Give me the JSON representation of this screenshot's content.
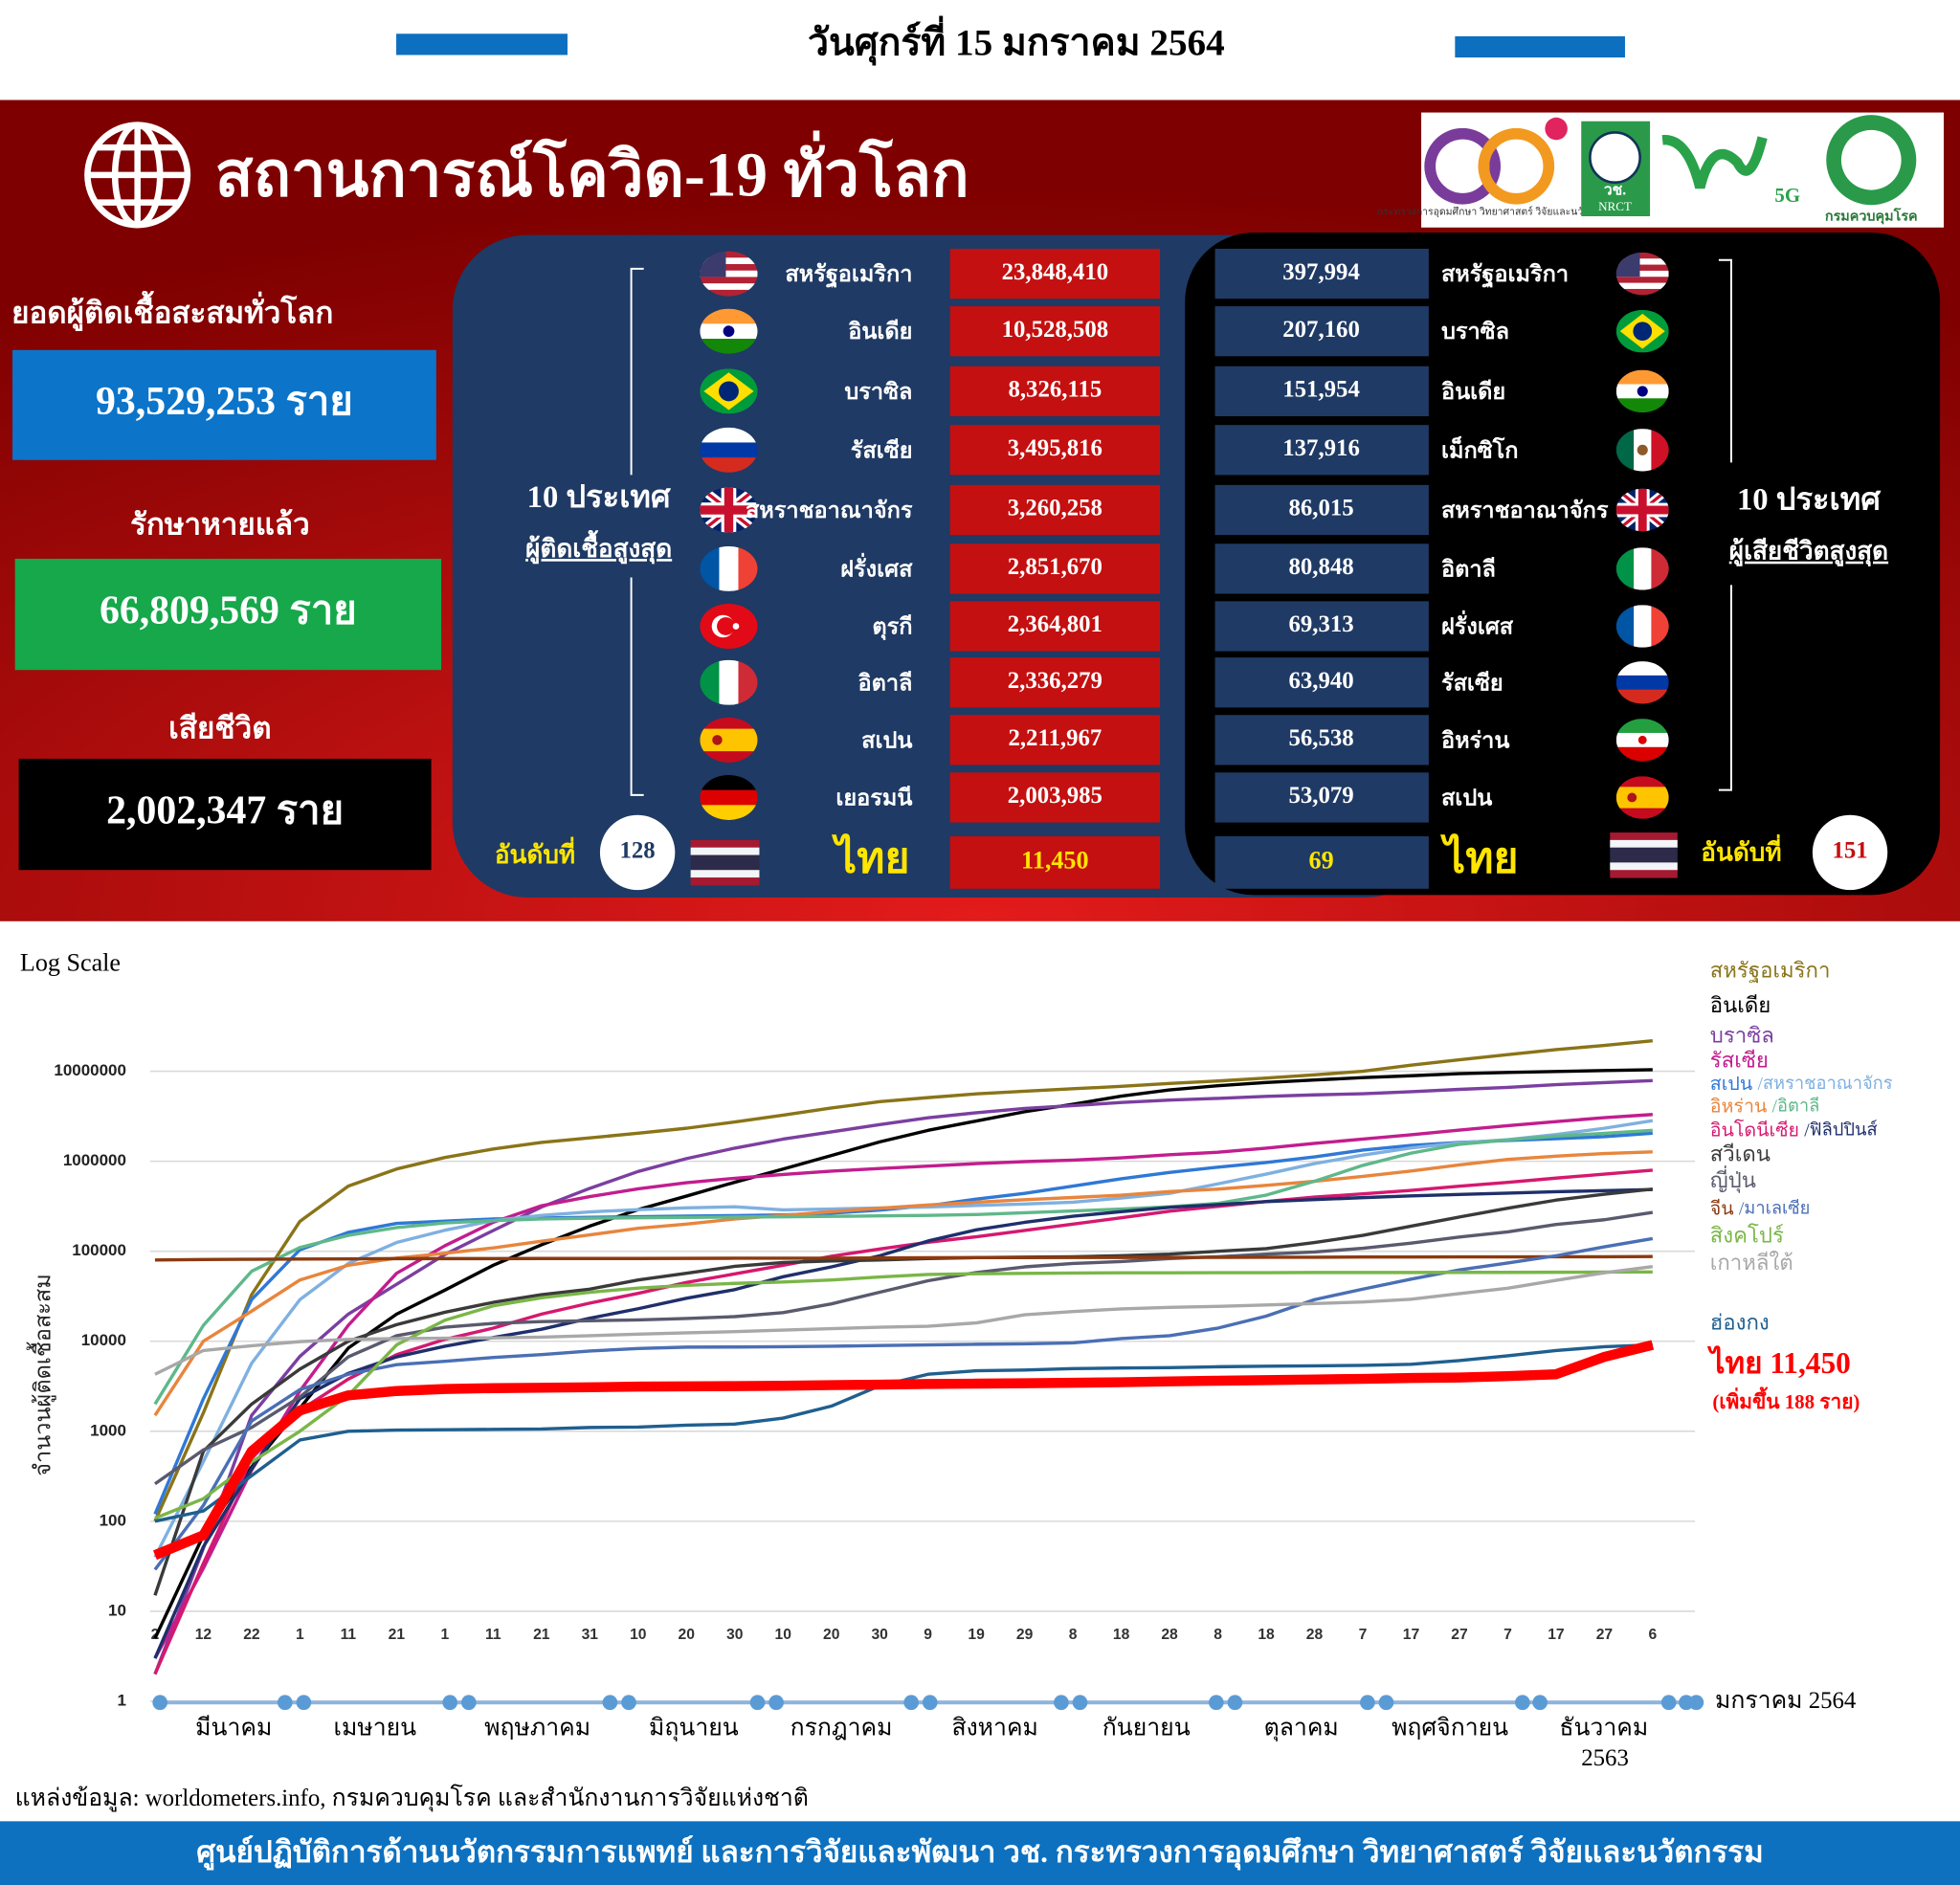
{
  "header": {
    "date": "วันศุกร์ที่ 15 มกราคม 2564",
    "title": "สถานการณ์โควิด-19 ทั่วโลก"
  },
  "logos": {
    "ministry": "กระทรวงการอุดมศึกษา วิทยาศาสตร์ วิจัยและนวัตกรรม",
    "nrct_th": "วช.",
    "nrct_en": "NRCT",
    "fiveg": "5G",
    "ddc": "กรมควบคุมโรค"
  },
  "summary": [
    {
      "label": "ยอดผู้ติดเชื้อสะสมทั่วโลก",
      "value": "93,529,253 ราย"
    },
    {
      "label": "รักษาหายแล้ว",
      "value": "66,809,569 ราย"
    },
    {
      "label": "เสียชีวิต",
      "value": "2,002,347 ราย"
    }
  ],
  "cases_table": {
    "label": "10 ประเทศ",
    "sublabel": "ผู้ติดเชื้อสูงสุด",
    "rows": [
      {
        "name": "สหรัฐอเมริกา",
        "value": "23,848,410"
      },
      {
        "name": "อินเดีย",
        "value": "10,528,508"
      },
      {
        "name": "บราซิล",
        "value": "8,326,115"
      },
      {
        "name": "รัสเซีย",
        "value": "3,495,816"
      },
      {
        "name": "สหราชอาณาจักร",
        "value": "3,260,258"
      },
      {
        "name": "ฝรั่งเศส",
        "value": "2,851,670"
      },
      {
        "name": "ตุรกี",
        "value": "2,364,801"
      },
      {
        "name": "อิตาลี",
        "value": "2,336,279"
      },
      {
        "name": "สเปน",
        "value": "2,211,967"
      },
      {
        "name": "เยอรมนี",
        "value": "2,003,985"
      }
    ],
    "thailand": {
      "rank_label": "อันดับที่",
      "rank": "128",
      "name": "ไทย",
      "value": "11,450"
    }
  },
  "deaths_table": {
    "label": "10 ประเทศ",
    "sublabel": "ผู้เสียชีวิตสูงสุด",
    "rows": [
      {
        "name": "สหรัฐอเมริกา",
        "value": "397,994"
      },
      {
        "name": "บราซิล",
        "value": "207,160"
      },
      {
        "name": "อินเดีย",
        "value": "151,954"
      },
      {
        "name": "เม็กซิโก",
        "value": "137,916"
      },
      {
        "name": "สหราชอาณาจักร",
        "value": "86,015"
      },
      {
        "name": "อิตาลี",
        "value": "80,848"
      },
      {
        "name": "ฝรั่งเศส",
        "value": "69,313"
      },
      {
        "name": "รัสเซีย",
        "value": "63,940"
      },
      {
        "name": "อิหร่าน",
        "value": "56,538"
      },
      {
        "name": "สเปน",
        "value": "53,079"
      }
    ],
    "thailand": {
      "rank_label": "อันดับที่",
      "rank": "151",
      "name": "ไทย",
      "value": "69"
    }
  },
  "chart_data": {
    "type": "line",
    "subtitle": "Log Scale",
    "y_label": "จำนวนผู้ติดเชื้อสะสม",
    "log_scale": true,
    "grid": true,
    "categories": [
      "2",
      "12",
      "22",
      "1",
      "11",
      "21",
      "1",
      "11",
      "21",
      "31",
      "10",
      "20",
      "30",
      "10",
      "20",
      "30",
      "9",
      "19",
      "29",
      "8",
      "18",
      "28",
      "8",
      "18",
      "28",
      "7",
      "17",
      "27",
      "7",
      "17",
      "27",
      "6"
    ],
    "month_labels": [
      "มีนาคม",
      "เมษายน",
      "พฤษภาคม",
      "มิถุนายน",
      "กรกฎาคม",
      "สิงหาคม",
      "กันยายน",
      "ตุลาคม",
      "พฤศจิกายน",
      "ธันวาคม",
      "มกราคม  2564"
    ],
    "year_label": "2563",
    "ylim": [
      1,
      80000000
    ],
    "yticks": [
      1,
      10,
      100,
      1000,
      10000,
      100000,
      1000000,
      10000000
    ],
    "legend_separator": "/",
    "series": [
      {
        "name": "สหรัฐอเมริกา",
        "color": "#8a7418",
        "values": [
          100,
          1600,
          33000,
          215000,
          530000,
          820000,
          1100000,
          1370000,
          1620000,
          1820000,
          2050000,
          2330000,
          2730000,
          3250000,
          3900000,
          4600000,
          5100000,
          5600000,
          6000000,
          6400000,
          6800000,
          7300000,
          7800000,
          8400000,
          9100000,
          10000000,
          11700000,
          13400000,
          15300000,
          17400000,
          19400000,
          21800000
        ]
      },
      {
        "name": "อินเดีย",
        "color": "#000000",
        "values": [
          5,
          70,
          400,
          1800,
          8400,
          20000,
          37000,
          70000,
          118000,
          190000,
          290000,
          410000,
          585000,
          820000,
          1160000,
          1640000,
          2200000,
          2800000,
          3550000,
          4300000,
          5300000,
          6200000,
          6900000,
          7500000,
          8000000,
          8500000,
          8900000,
          9400000,
          9700000,
          9950000,
          10200000,
          10400000
        ]
      },
      {
        "name": "บราซิล",
        "color": "#7b3fa0",
        "values": [
          2,
          50,
          1500,
          6800,
          20000,
          43000,
          92000,
          170000,
          310000,
          500000,
          770000,
          1070000,
          1400000,
          1760000,
          2120000,
          2550000,
          3040000,
          3460000,
          3850000,
          4150000,
          4500000,
          4780000,
          5000000,
          5250000,
          5470000,
          5630000,
          5910000,
          6290000,
          6630000,
          7110000,
          7470000,
          7870000
        ]
      },
      {
        "name": "รัสเซีย",
        "color": "#c21d8e",
        "values": [
          3,
          30,
          370,
          2800,
          15000,
          57000,
          115000,
          210000,
          320000,
          405000,
          494000,
          577000,
          647000,
          713000,
          777000,
          830000,
          883000,
          940000,
          990000,
          1030000,
          1090000,
          1180000,
          1260000,
          1400000,
          1580000,
          1760000,
          1970000,
          2220000,
          2490000,
          2760000,
          3050000,
          3310000
        ]
      },
      {
        "name": "สเปน",
        "color": "#2f78d6",
        "values": [
          120,
          2300,
          29000,
          104000,
          162000,
          204000,
          216000,
          228000,
          234000,
          239000,
          242000,
          246000,
          249000,
          254000,
          265000,
          286000,
          320000,
          380000,
          440000,
          530000,
          640000,
          750000,
          860000,
          970000,
          1120000,
          1330000,
          1500000,
          1620000,
          1700000,
          1780000,
          1880000,
          2050000
        ]
      },
      {
        "name": "สหราชอาณาจักร",
        "color": "#7fb0e0",
        "values": [
          40,
          460,
          5700,
          29000,
          73000,
          125000,
          171000,
          219000,
          250000,
          274000,
          290000,
          303000,
          312000,
          288000,
          295000,
          302000,
          310000,
          322000,
          335000,
          350000,
          390000,
          440000,
          560000,
          720000,
          940000,
          1170000,
          1410000,
          1600000,
          1740000,
          1980000,
          2330000,
          2830000
        ]
      },
      {
        "name": "อิหร่าน",
        "color": "#e8853d",
        "values": [
          1500,
          10000,
          21600,
          48000,
          70000,
          84000,
          95000,
          109000,
          129000,
          152000,
          180000,
          200000,
          228000,
          250000,
          276000,
          300000,
          326000,
          350000,
          373000,
          395000,
          420000,
          460000,
          490000,
          540000,
          600000,
          680000,
          780000,
          910000,
          1050000,
          1140000,
          1220000,
          1270000
        ]
      },
      {
        "name": "อิตาลี",
        "color": "#5fb88a",
        "values": [
          2000,
          15000,
          60000,
          110000,
          150000,
          183000,
          207000,
          219000,
          228000,
          233000,
          236000,
          238000,
          240000,
          242000,
          244000,
          247000,
          250000,
          256000,
          268000,
          280000,
          295000,
          312000,
          340000,
          420000,
          600000,
          900000,
          1230000,
          1540000,
          1730000,
          1900000,
          2040000,
          2200000
        ]
      },
      {
        "name": "อินโดนีเซีย",
        "color": "#d6186f",
        "values": [
          2,
          34,
          500,
          1700,
          3800,
          7100,
          10500,
          14000,
          20000,
          26500,
          34000,
          45000,
          56000,
          70000,
          88000,
          106000,
          126000,
          145000,
          170000,
          200000,
          236000,
          278000,
          315000,
          357000,
          400000,
          434000,
          474000,
          528000,
          582000,
          650000,
          720000,
          798000
        ]
      },
      {
        "name": "ฟิลิปปินส์",
        "color": "#1f2f6b",
        "values": [
          3,
          52,
          380,
          2300,
          4400,
          6700,
          8800,
          11000,
          13600,
          18000,
          23000,
          30000,
          37500,
          52000,
          67000,
          89000,
          130000,
          173000,
          209000,
          245000,
          276000,
          307000,
          330000,
          356000,
          375000,
          394000,
          412000,
          427000,
          443000,
          458000,
          471000,
          485000
        ]
      },
      {
        "name": "สวีเดน",
        "color": "#3a3a3a",
        "values": [
          15,
          600,
          2000,
          4900,
          10000,
          15300,
          21000,
          27000,
          33000,
          38000,
          48000,
          57000,
          68000,
          75000,
          78000,
          80000,
          83000,
          85000,
          86000,
          87000,
          89000,
          93000,
          100000,
          107000,
          125000,
          150000,
          190000,
          240000,
          300000,
          370000,
          430000,
          490000
        ]
      },
      {
        "name": "ญี่ปุ่น",
        "color": "#5a5a6e",
        "values": [
          260,
          620,
          1100,
          2400,
          6700,
          11500,
          14300,
          15800,
          16500,
          16900,
          17300,
          17900,
          18800,
          20800,
          26000,
          35000,
          47000,
          58000,
          67000,
          73000,
          77000,
          83000,
          87000,
          93000,
          98000,
          108000,
          123000,
          144000,
          164000,
          198000,
          224000,
          270000
        ]
      },
      {
        "name": "จีน",
        "color": "#8b3a0f",
        "values": [
          80000,
          81000,
          81500,
          82000,
          82200,
          82700,
          82900,
          82900,
          82970,
          83000,
          83050,
          83400,
          83500,
          83600,
          83700,
          84100,
          84700,
          84900,
          85000,
          85150,
          85300,
          85400,
          85500,
          85650,
          85900,
          86200,
          86400,
          86500,
          86700,
          86900,
          87000,
          87300
        ]
      },
      {
        "name": "มาเลเซีย",
        "color": "#4a6fb5",
        "values": [
          29,
          150,
          1300,
          2900,
          4300,
          5500,
          6000,
          6600,
          7100,
          7800,
          8300,
          8600,
          8640,
          8700,
          8800,
          8960,
          9100,
          9250,
          9340,
          9600,
          10700,
          11500,
          14000,
          19000,
          29000,
          38000,
          49000,
          62000,
          74000,
          89000,
          112000,
          138000
        ]
      },
      {
        "name": "สิงคโปร์",
        "color": "#7ab648",
        "values": [
          108,
          178,
          455,
          1000,
          2500,
          9100,
          17100,
          24700,
          30400,
          35000,
          38900,
          41800,
          44000,
          45600,
          47900,
          51800,
          55100,
          56300,
          56800,
          57300,
          57600,
          57700,
          57800,
          57900,
          58000,
          58100,
          58100,
          58200,
          58300,
          58400,
          58600,
          58800
        ]
      },
      {
        "name": "เกาหลีใต้",
        "color": "#a8a8a8",
        "values": [
          4300,
          7900,
          8900,
          9900,
          10500,
          10700,
          10800,
          10900,
          11100,
          11500,
          12000,
          12400,
          12800,
          13300,
          13800,
          14300,
          14700,
          16000,
          19700,
          21400,
          22900,
          23800,
          24400,
          25300,
          26300,
          27300,
          29300,
          33800,
          38800,
          47500,
          57600,
          67400
        ]
      },
      {
        "name": "ฮ่องกง",
        "color": "#1f5f8f",
        "values": [
          100,
          130,
          320,
          800,
          1000,
          1030,
          1040,
          1050,
          1060,
          1100,
          1110,
          1170,
          1200,
          1400,
          1900,
          3200,
          4300,
          4700,
          4800,
          4960,
          5040,
          5100,
          5200,
          5270,
          5330,
          5400,
          5560,
          6100,
          6900,
          7900,
          8700,
          9100
        ]
      },
      {
        "name": "ไทย",
        "color": "#ff0000",
        "values": [
          42,
          70,
          600,
          1700,
          2500,
          2800,
          2950,
          3010,
          3040,
          3080,
          3130,
          3150,
          3170,
          3200,
          3250,
          3300,
          3350,
          3380,
          3410,
          3460,
          3500,
          3580,
          3640,
          3700,
          3760,
          3820,
          3900,
          3960,
          4100,
          4300,
          6700,
          9100
        ]
      }
    ],
    "annotations": [
      "11,450",
      "(เพิ่มขึ้น 188 ราย)"
    ]
  },
  "source": "แหล่งข้อมูล: worldometers.info, กรมควบคุมโรค และสำนักงานการวิจัยแห่งชาติ",
  "footer": "ศูนย์ปฏิบัติการด้านนวัตกรรมการแพทย์ และการวิจัยและพัฒนา วช.  กระทรวงการอุดมศึกษา วิทยาศาสตร์ วิจัยและนวัตกรรม"
}
